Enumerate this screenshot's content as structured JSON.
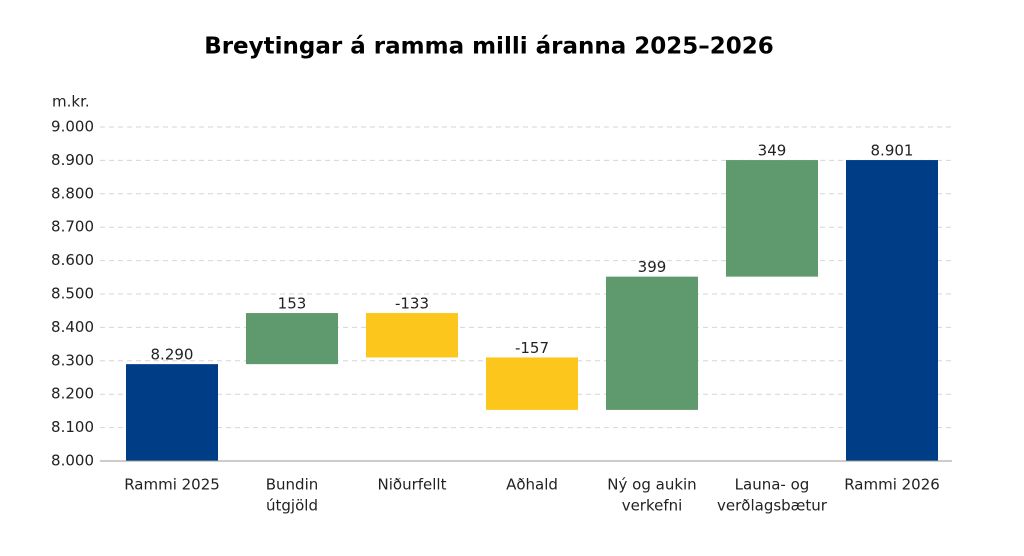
{
  "chart_data": {
    "type": "waterfall",
    "title": "Breytingar á ramma milli áranna 2025–2026",
    "y_label": "m.kr.",
    "categories": [
      [
        "Rammi 2025"
      ],
      [
        "Bundin",
        "útgjöld"
      ],
      [
        "Niðurfellt"
      ],
      [
        "Aðhald"
      ],
      [
        "Ný og aukin",
        "verkefni"
      ],
      [
        "Launa- og",
        "verðlagsbætur"
      ],
      [
        "Rammi 2026"
      ]
    ],
    "values": [
      8290,
      153,
      -133,
      -157,
      399,
      349,
      8901
    ],
    "value_labels": [
      "8.290",
      "153",
      "-133",
      "-157",
      "399",
      "349",
      "8.901"
    ],
    "colors": {
      "total": "#003d87",
      "increase": "#5f9a6e",
      "decrease": "#fdc61c"
    },
    "ylim": [
      8000,
      9000
    ],
    "yticks": [
      {
        "value": 8000,
        "label": "8.000"
      },
      {
        "value": 8100,
        "label": "8.100"
      },
      {
        "value": 8200,
        "label": "8.200"
      },
      {
        "value": 8300,
        "label": "8.300"
      },
      {
        "value": 8400,
        "label": "8.400"
      },
      {
        "value": 8500,
        "label": "8.500"
      },
      {
        "value": 8600,
        "label": "8.600"
      },
      {
        "value": 8700,
        "label": "8.700"
      },
      {
        "value": 8800,
        "label": "8.800"
      },
      {
        "value": 8900,
        "label": "8.900"
      },
      {
        "value": 9000,
        "label": "9.000"
      }
    ],
    "grid": true
  }
}
